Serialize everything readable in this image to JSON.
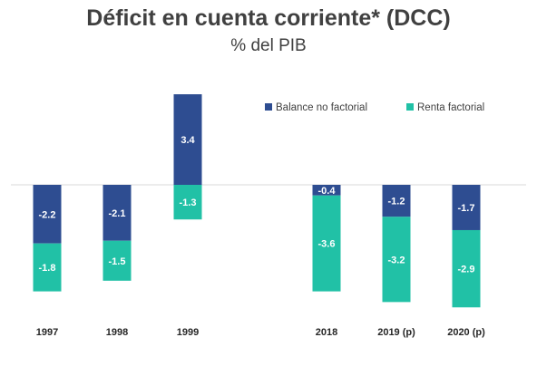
{
  "chart_data": {
    "type": "bar",
    "stacked": true,
    "title": "Déficit en cuenta corriente* (DCC)",
    "subtitle": "% del PIB",
    "categories": [
      "1997",
      "1998",
      "1999",
      "2018",
      "2019 (p)",
      "2020 (p)"
    ],
    "series": [
      {
        "name": "Balance no factorial",
        "color": "#2E4D91",
        "values": [
          -2.2,
          -2.1,
          3.4,
          -0.4,
          -1.2,
          -1.7
        ]
      },
      {
        "name": "Renta factorial",
        "color": "#21C1A6",
        "values": [
          -1.8,
          -1.5,
          -1.3,
          -3.6,
          -3.2,
          -2.9
        ]
      }
    ],
    "labels": [
      [
        "-2.2",
        "-2.1",
        "3.4",
        "-0.4",
        "-1.2",
        "-1.7"
      ],
      [
        "-1.8",
        "-1.5",
        "-1.3",
        "-3.6",
        "-3.2",
        "-2.9"
      ]
    ],
    "legend_position": "top-right",
    "grid": false
  }
}
